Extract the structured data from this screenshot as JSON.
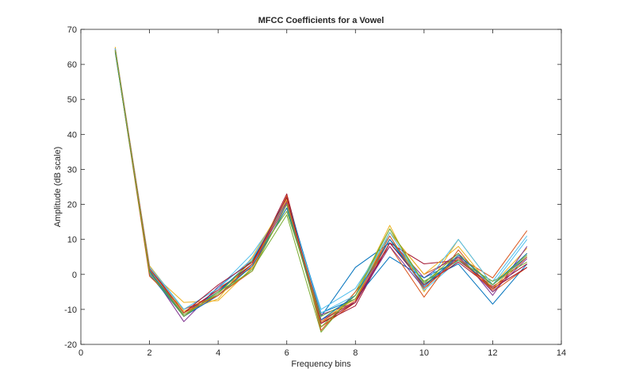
{
  "chart_data": {
    "type": "line",
    "title": "MFCC Coefficients for a Vowel",
    "xlabel": "Frequency bins",
    "ylabel": "Amplitude (dB scale)",
    "xlim": [
      0,
      14
    ],
    "ylim": [
      -20,
      70
    ],
    "xticks": [
      0,
      2,
      4,
      6,
      8,
      10,
      12,
      14
    ],
    "yticks": [
      -20,
      -10,
      0,
      10,
      20,
      30,
      40,
      50,
      60,
      70
    ],
    "grid": false,
    "legend": "none",
    "x": [
      1,
      2,
      3,
      4,
      5,
      6,
      7,
      8,
      9,
      10,
      11,
      12,
      13
    ],
    "series": [
      {
        "color": "#0072BD",
        "values": [
          64,
          2.0,
          -11.0,
          -5.0,
          3.0,
          21.0,
          -12.0,
          2.0,
          9.0,
          -2.0,
          3.0,
          -8.5,
          3.0
        ]
      },
      {
        "color": "#D95319",
        "values": [
          64.5,
          0.5,
          -12.0,
          -4.0,
          2.0,
          22.0,
          -15.0,
          -8.0,
          12.0,
          0.0,
          5.0,
          -1.0,
          12.5
        ]
      },
      {
        "color": "#EDB120",
        "values": [
          64,
          1.0,
          -8.0,
          -7.5,
          2.0,
          19.0,
          -14.0,
          -6.0,
          14.0,
          -5.0,
          10.0,
          -3.0,
          7.5
        ]
      },
      {
        "color": "#7E2F8E",
        "values": [
          64.5,
          1.0,
          -13.5,
          -3.5,
          4.0,
          20.5,
          -11.5,
          -8.0,
          10.0,
          -1.0,
          6.0,
          -6.0,
          8.0
        ]
      },
      {
        "color": "#77AC30",
        "values": [
          63.5,
          1.5,
          -11.0,
          -6.0,
          1.5,
          17.0,
          -16.5,
          -5.0,
          13.0,
          -3.0,
          5.0,
          -4.0,
          6.0
        ]
      },
      {
        "color": "#4DBEEE",
        "values": [
          64,
          2.5,
          -10.0,
          -4.0,
          6.0,
          20.0,
          -10.0,
          -4.0,
          11.0,
          -4.5,
          4.0,
          -2.0,
          11.0
        ]
      },
      {
        "color": "#A2142F",
        "values": [
          64,
          2.0,
          -11.0,
          -4.5,
          3.0,
          23.0,
          -14.0,
          -9.0,
          9.0,
          3.0,
          4.0,
          -3.5,
          3.0
        ]
      },
      {
        "color": "#0072BD",
        "values": [
          64.5,
          0.0,
          -12.0,
          -5.0,
          4.0,
          22.0,
          -11.0,
          -7.0,
          5.0,
          -1.0,
          4.0,
          -3.0,
          5.0
        ]
      },
      {
        "color": "#D95319",
        "values": [
          64,
          -0.5,
          -10.0,
          -6.0,
          1.0,
          22.5,
          -16.0,
          -5.0,
          8.0,
          -6.5,
          7.0,
          -5.0,
          2.0
        ]
      },
      {
        "color": "#EDB120",
        "values": [
          65,
          2.5,
          -10.5,
          -7.0,
          5.0,
          21.5,
          -13.0,
          -7.0,
          12.0,
          0.0,
          8.0,
          -4.0,
          6.0
        ]
      },
      {
        "color": "#7E2F8E",
        "values": [
          64.5,
          2.0,
          -12.0,
          -6.0,
          3.0,
          20.0,
          -13.0,
          -8.0,
          8.0,
          -4.0,
          5.0,
          -5.0,
          4.5
        ]
      },
      {
        "color": "#77AC30",
        "values": [
          64,
          1.0,
          -11.5,
          -5.5,
          4.0,
          18.0,
          -12.0,
          -7.0,
          10.0,
          -2.0,
          4.0,
          -2.0,
          3.5
        ]
      },
      {
        "color": "#4DBEEE",
        "values": [
          64.5,
          2.0,
          -10.0,
          -4.0,
          4.5,
          21.0,
          -11.0,
          -6.0,
          12.0,
          -3.0,
          10.0,
          -3.0,
          10.0
        ]
      },
      {
        "color": "#A2142F",
        "values": [
          64,
          1.5,
          -11.0,
          -3.0,
          3.5,
          22.0,
          -14.0,
          -8.0,
          9.0,
          -3.0,
          3.5,
          -4.0,
          2.0
        ]
      },
      {
        "color": "#0072BD",
        "values": [
          63.5,
          1.0,
          -12.0,
          -6.0,
          2.5,
          19.0,
          -13.0,
          -6.0,
          10.0,
          -3.5,
          5.5,
          -3.0,
          6.0
        ]
      },
      {
        "color": "#D95319",
        "values": [
          64,
          1.5,
          -11.0,
          -6.0,
          3.0,
          21.0,
          -13.5,
          -7.5,
          11.0,
          -4.0,
          4.5,
          -4.5,
          5.0
        ]
      },
      {
        "color": "#77AC30",
        "values": [
          64,
          0.5,
          -12.0,
          -5.0,
          1.0,
          20.0,
          -15.0,
          -6.0,
          13.0,
          -2.5,
          6.0,
          -3.0,
          5.5
        ]
      }
    ]
  }
}
